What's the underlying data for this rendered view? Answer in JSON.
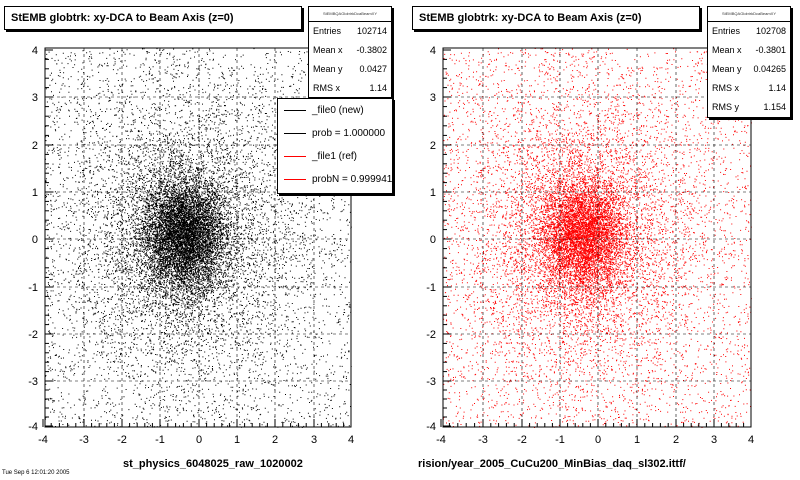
{
  "chart_data": [
    {
      "type": "scatter",
      "title": "StEMB globtrk: xy-DCA to Beam Axis (z=0)",
      "xlim": [
        -4,
        4
      ],
      "ylim": [
        -4,
        4
      ],
      "xticks": [
        "-4",
        "-3",
        "-2",
        "-1",
        "0",
        "1",
        "2",
        "3",
        "4"
      ],
      "yticks": [
        "4",
        "3",
        "2",
        "1",
        "0",
        "-1",
        "-2",
        "-3",
        "-4"
      ],
      "grid": true,
      "point_color": "#000000",
      "stats": {
        "header": "StEMBQAGlobtrkDcaBeamXY",
        "rows": [
          {
            "key": "Entries",
            "value": "102714"
          },
          {
            "key": "Mean x",
            "value": "-0.3802"
          },
          {
            "key": "Mean y",
            "value": "0.0427"
          },
          {
            "key": "RMS x",
            "value": "1.14"
          }
        ]
      },
      "legend": {
        "placement": "top-right",
        "entries": [
          {
            "label": "_file0 (new)",
            "color": "#000000"
          },
          {
            "label": "prob = 1.000000",
            "color": "#000000"
          },
          {
            "label": "_file1 (ref)",
            "color": "#ff0000"
          },
          {
            "label": "probN = 0.999941",
            "color": "#ff0000"
          }
        ]
      },
      "caption": "st_physics_6048025_raw_1020002"
    },
    {
      "type": "scatter",
      "title": "StEMB globtrk: xy-DCA to Beam Axis (z=0)",
      "xlim": [
        -4,
        4
      ],
      "ylim": [
        -4,
        4
      ],
      "xticks": [
        "-4",
        "-3",
        "-2",
        "-1",
        "0",
        "1",
        "2",
        "3",
        "4"
      ],
      "yticks": [
        "4",
        "3",
        "2",
        "1",
        "0",
        "-1",
        "-2",
        "-3",
        "-4"
      ],
      "grid": true,
      "point_color": "#ff0000",
      "stats": {
        "header": "StEMBQAGlobtrkDcaBeamXY",
        "rows": [
          {
            "key": "Entries",
            "value": "102708"
          },
          {
            "key": "Mean x",
            "value": "-0.3801"
          },
          {
            "key": "Mean y",
            "value": "0.04265"
          },
          {
            "key": "RMS x",
            "value": "1.14"
          },
          {
            "key": "RMS y",
            "value": "1.154"
          }
        ]
      },
      "caption": "rision/year_2005_CuCu200_MinBias_daq_sl302.ittf/"
    }
  ],
  "footer_left": "Tue Sep 6 12:01:20 2005"
}
